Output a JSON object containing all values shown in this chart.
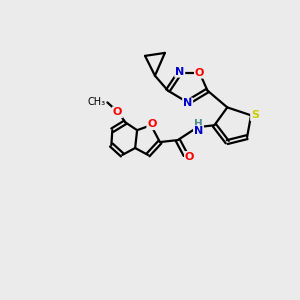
{
  "background_color": "#ebebeb",
  "bond_color": "#000000",
  "atom_colors": {
    "O": "#ff0000",
    "N": "#0000cd",
    "S": "#cccc00",
    "H": "#4a9090",
    "C": "#000000"
  },
  "figsize": [
    3.0,
    3.0
  ],
  "dpi": 100
}
